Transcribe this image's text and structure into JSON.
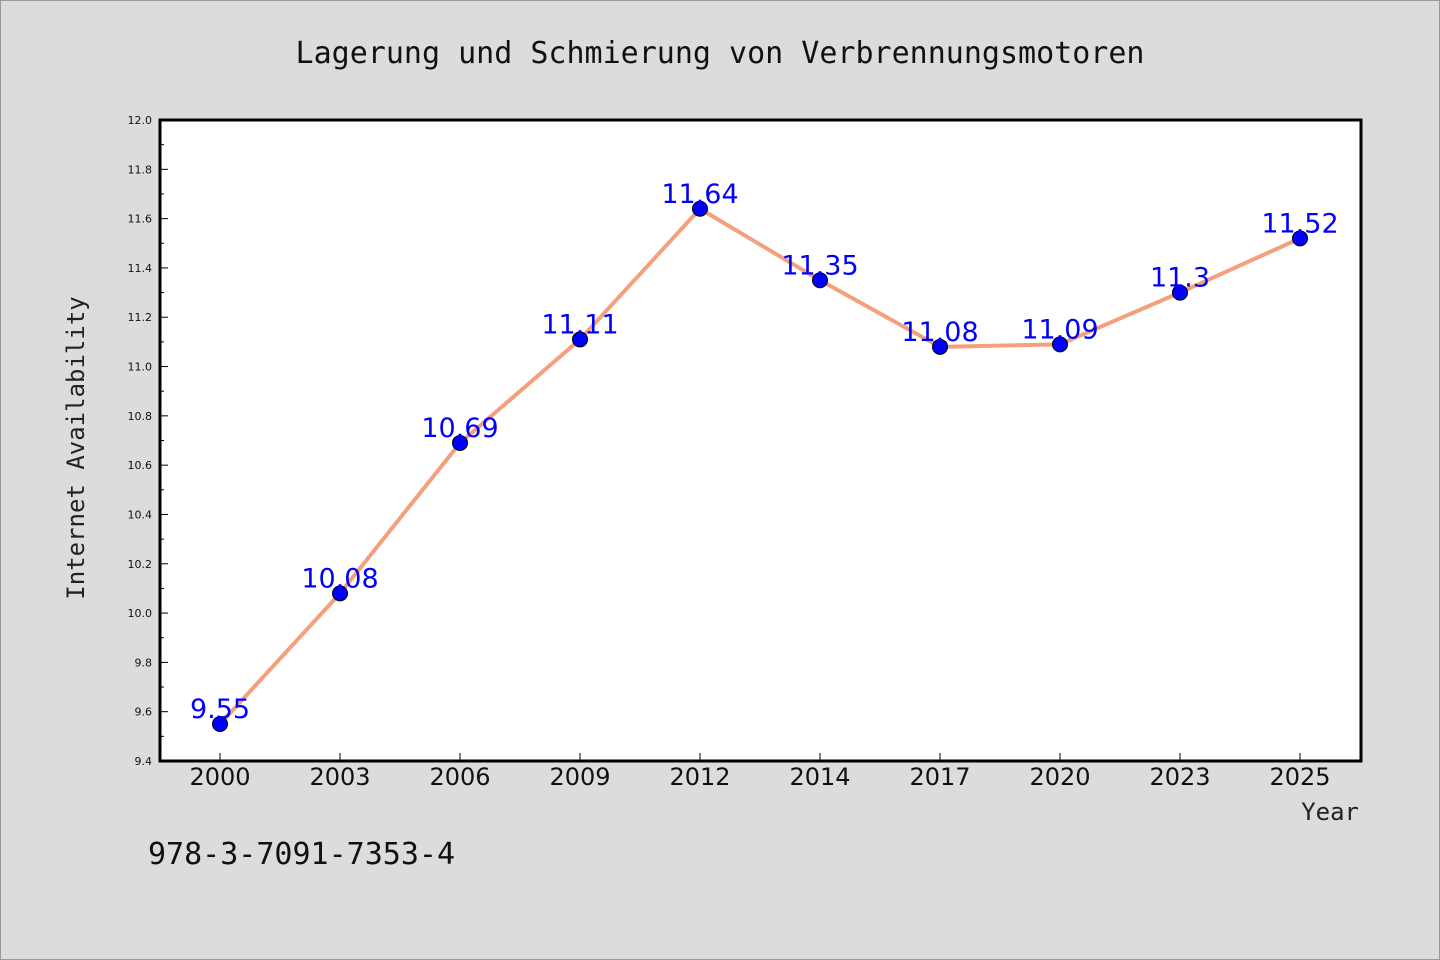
{
  "chart_data": {
    "type": "line",
    "title": "Lagerung und Schmierung von Verbrennungsmotoren",
    "xlabel": "Year",
    "ylabel": "Internet Availability",
    "categories": [
      "2000",
      "2003",
      "2006",
      "2009",
      "2012",
      "2014",
      "2017",
      "2020",
      "2023",
      "2025"
    ],
    "series": [
      {
        "values": [
          9.55,
          10.08,
          10.69,
          11.11,
          11.64,
          11.35,
          11.08,
          11.09,
          11.3,
          11.52
        ],
        "labels": [
          "9.55",
          "10.08",
          "10.69",
          "11.11",
          "11.64",
          "11.35",
          "11.08",
          "11.09",
          "11.3",
          "11.52"
        ],
        "line_color": "#f4a07c",
        "marker_color": "#0000ff"
      }
    ],
    "ylim": [
      9.4,
      12.0
    ],
    "yticks": [
      "9.4",
      "9.6",
      "9.8",
      "10.0",
      "10.2",
      "10.4",
      "10.6",
      "10.8",
      "11.0",
      "11.2",
      "11.4",
      "11.6",
      "11.8",
      "12.0"
    ],
    "grid": false,
    "legend": "none"
  },
  "footer": {
    "isbn": "978-3-7091-7353-4"
  },
  "colors": {
    "background": "#dcdcdc",
    "plot_background": "#ffffff",
    "label_color": "#0000ff"
  }
}
